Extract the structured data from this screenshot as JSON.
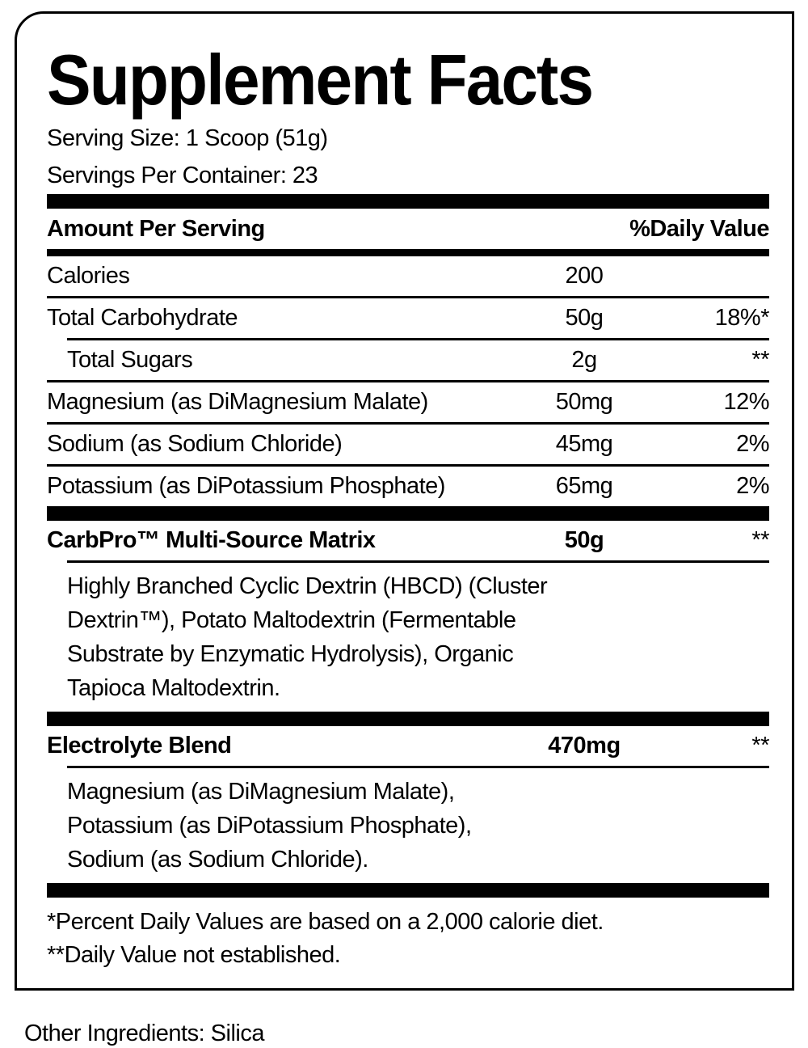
{
  "colors": {
    "ink": "#000000",
    "background": "#ffffff"
  },
  "label": {
    "title": "Supplement Facts",
    "serving_size": "Serving Size: 1 Scoop (51g)",
    "servings_per_container": "Servings Per Container: 23",
    "columns": {
      "amount_header": "Amount Per Serving",
      "dv_header": "%Daily Value"
    },
    "nutrients": [
      {
        "name": "Calories",
        "amount": "200",
        "dv": "",
        "indent": false
      },
      {
        "name": "Total Carbohydrate",
        "amount": "50g",
        "dv": "18%*",
        "indent": false
      },
      {
        "name": "Total Sugars",
        "amount": "2g",
        "dv": "**",
        "indent": true
      },
      {
        "name": "Magnesium (as DiMagnesium Malate)",
        "amount": "50mg",
        "dv": "12%",
        "indent": false
      },
      {
        "name": "Sodium (as Sodium Chloride)",
        "amount": "45mg",
        "dv": "2%",
        "indent": false
      },
      {
        "name": "Potassium (as DiPotassium Phosphate)",
        "amount": "65mg",
        "dv": "2%",
        "indent": false
      }
    ],
    "blends": [
      {
        "name": "CarbPro™ Multi-Source Matrix",
        "amount": "50g",
        "dv": "**",
        "description": "Highly Branched Cyclic Dextrin (HBCD) (Cluster Dextrin™), Potato Maltodextrin (Fermentable Substrate by Enzymatic Hydrolysis), Organic Tapioca Maltodextrin."
      },
      {
        "name": "Electrolyte Blend",
        "amount": "470mg",
        "dv": "**",
        "description": "Magnesium (as DiMagnesium Malate), Potassium (as DiPotassium Phosphate), Sodium (as Sodium Chloride)."
      }
    ],
    "footnotes": [
      "*Percent Daily Values are based on a 2,000 calorie diet.",
      "**Daily Value not established."
    ],
    "other_ingredients": "Other Ingredients: Silica"
  }
}
